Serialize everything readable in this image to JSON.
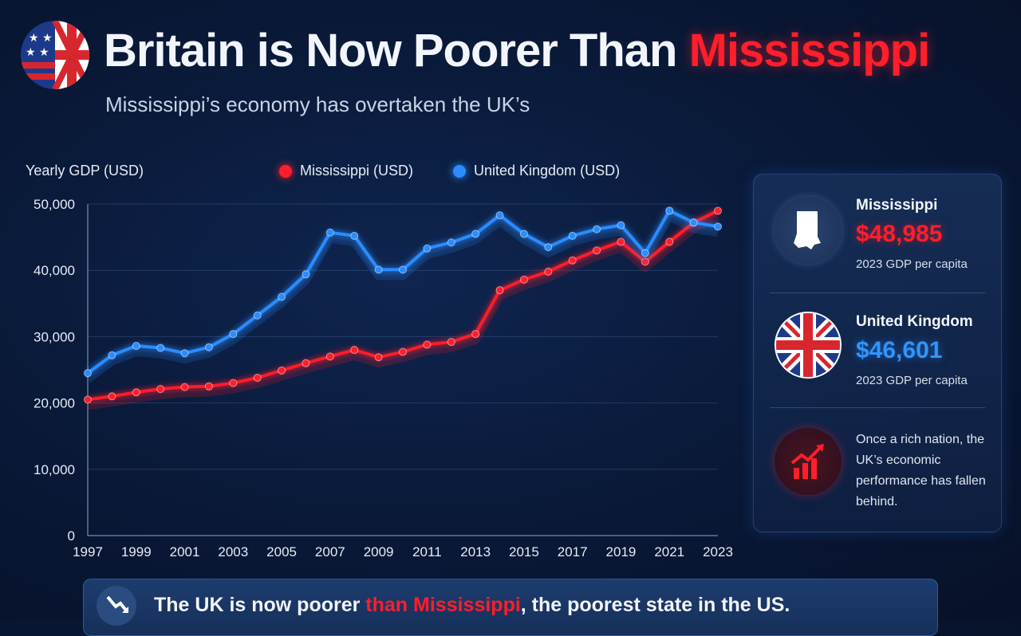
{
  "header": {
    "title_main": "Britain is Now Poorer Than",
    "title_accent": "Mississippi",
    "subtitle": "Mississippi’s economy has overtaken the UK’s",
    "flag_icon": "us-uk-flag-icon"
  },
  "colors": {
    "mississippi": "#ff1e2a",
    "uk": "#2a8cff",
    "background": "#0a1a3a"
  },
  "chart_data": {
    "type": "line",
    "ylabel": "Yearly GDP (USD)",
    "x": [
      1997,
      1998,
      1999,
      2000,
      2001,
      2002,
      2003,
      2004,
      2005,
      2006,
      2007,
      2008,
      2009,
      2010,
      2011,
      2012,
      2013,
      2014,
      2015,
      2016,
      2017,
      2018,
      2019,
      2020,
      2021,
      2022,
      2023
    ],
    "x_tick_labels": [
      "1997",
      "1999",
      "2001",
      "2003",
      "2005",
      "2007",
      "2009",
      "2011",
      "2013",
      "2015",
      "2017",
      "2019",
      "2021",
      "2023"
    ],
    "y_tick_labels": [
      "0",
      "10,000",
      "20,000",
      "30,000",
      "40,000",
      "50,000"
    ],
    "ylim": [
      0,
      50000
    ],
    "grid": true,
    "legend": "top",
    "series": [
      {
        "name": "Mississippi (USD)",
        "color": "#ff1e2a",
        "values": [
          20500,
          21000,
          21600,
          22100,
          22400,
          22500,
          23000,
          23800,
          24900,
          26000,
          27000,
          28000,
          26900,
          27700,
          28800,
          29200,
          30400,
          37000,
          38600,
          39800,
          41500,
          43000,
          44300,
          41300,
          44300,
          47200,
          48985
        ]
      },
      {
        "name": "United Kingdom (USD)",
        "color": "#2a8cff",
        "values": [
          24500,
          27200,
          28600,
          28300,
          27500,
          28400,
          30400,
          33200,
          36000,
          39400,
          45700,
          45200,
          40100,
          40100,
          43300,
          44200,
          45500,
          48300,
          45500,
          43500,
          45200,
          46200,
          46800,
          42600,
          49000,
          47200,
          46601
        ]
      }
    ]
  },
  "panel": {
    "mississippi": {
      "name": "Mississippi",
      "value": "$48,985",
      "caption": "2023 GDP per capita",
      "icon": "mississippi-map-icon"
    },
    "uk": {
      "name": "United Kingdom",
      "value": "$46,601",
      "caption": "2023 GDP per capita",
      "icon": "uk-flag-icon"
    },
    "note": {
      "text": "Once a rich nation, the UK’s economic performance has fallen behind.",
      "icon": "trend-chart-icon"
    }
  },
  "banner": {
    "icon": "trend-down-icon",
    "text_before": "The UK is now poorer ",
    "text_highlight": "than Mississippi",
    "text_after": ", the poorest state in the US."
  }
}
